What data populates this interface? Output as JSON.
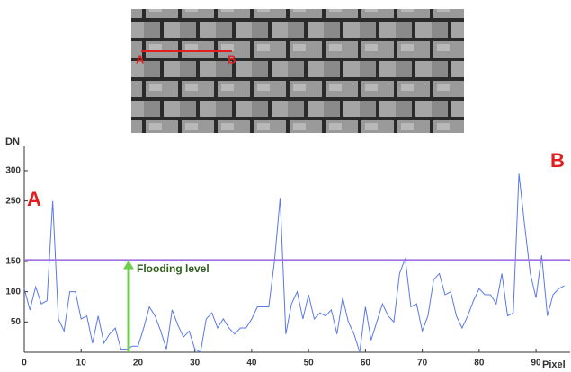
{
  "chart_data": {
    "type": "line",
    "x": [
      0,
      1,
      2,
      3,
      4,
      5,
      6,
      7,
      8,
      9,
      10,
      11,
      12,
      13,
      14,
      15,
      16,
      17,
      18,
      19,
      20,
      21,
      22,
      23,
      24,
      25,
      26,
      27,
      28,
      29,
      30,
      31,
      32,
      33,
      34,
      35,
      36,
      37,
      38,
      39,
      40,
      41,
      42,
      43,
      44,
      45,
      46,
      47,
      48,
      49,
      50,
      51,
      52,
      53,
      54,
      55,
      56,
      57,
      58,
      59,
      60,
      61,
      62,
      63,
      64,
      65,
      66,
      67,
      68,
      69,
      70,
      71,
      72,
      73,
      74,
      75,
      76,
      77,
      78,
      79,
      80,
      81,
      82,
      83,
      84,
      85,
      86,
      87,
      88,
      89,
      90,
      91,
      92,
      93,
      94,
      95
    ],
    "series": [
      {
        "name": "DN",
        "color": "#5a78e6",
        "values": [
          105,
          70,
          108,
          80,
          85,
          250,
          55,
          35,
          100,
          100,
          55,
          60,
          15,
          60,
          15,
          30,
          40,
          5,
          5,
          10,
          10,
          40,
          75,
          60,
          35,
          5,
          70,
          45,
          25,
          35,
          5,
          0,
          55,
          65,
          40,
          55,
          40,
          30,
          40,
          40,
          55,
          75,
          75,
          75,
          150,
          255,
          30,
          80,
          100,
          55,
          95,
          55,
          65,
          60,
          70,
          30,
          90,
          50,
          30,
          0,
          75,
          20,
          50,
          80,
          60,
          50,
          130,
          155,
          75,
          80,
          35,
          60,
          120,
          130,
          95,
          100,
          60,
          40,
          60,
          85,
          105,
          95,
          95,
          80,
          130,
          60,
          65,
          295,
          210,
          130,
          90,
          160,
          60,
          95,
          105,
          110
        ]
      }
    ],
    "xlim": [
      0,
      96
    ],
    "ylim": [
      0,
      340
    ],
    "xticks": [
      0,
      10,
      20,
      30,
      40,
      50,
      60,
      70,
      80,
      90
    ],
    "yticks": [
      50,
      100,
      150,
      250,
      300
    ],
    "xlabel": "Pixel",
    "ylabel": "DN",
    "hline": {
      "value": 152,
      "color": "#a070e0"
    },
    "annotations": {
      "start": "A",
      "end": "B",
      "flood": "Flooding level"
    },
    "image_labels": {
      "start": "A",
      "end": "B"
    }
  }
}
